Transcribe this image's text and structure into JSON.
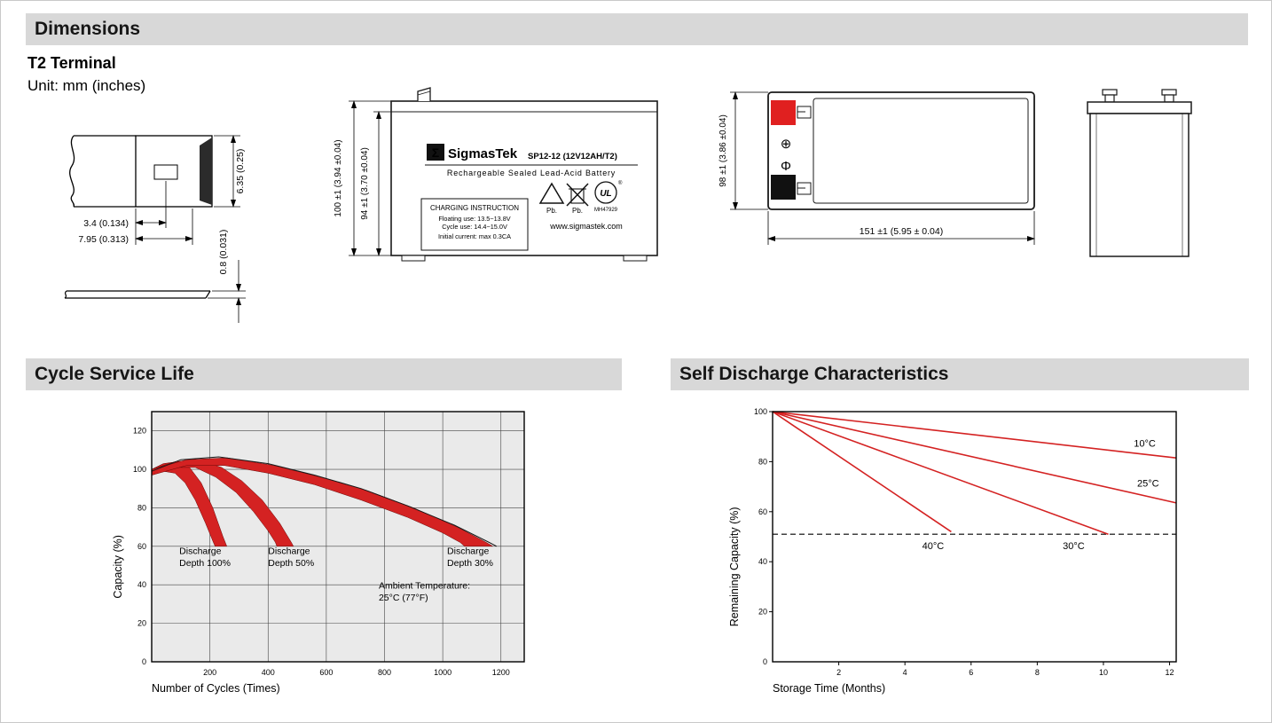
{
  "colors": {
    "banner_bg": "#d8d8d8",
    "chart_red": "#d42222",
    "terminal_positive_red": "#e02020",
    "terminal_negative_black": "#111111"
  },
  "banners": {
    "dimensions": "Dimensions",
    "cycle": "Cycle Service Life",
    "self_discharge": "Self Discharge Characteristics"
  },
  "dimensions_section": {
    "terminal_type": "T2 Terminal",
    "unit": "Unit: mm (inches)",
    "terminal_drawing": {
      "dim_width": "6.35 (0.25)",
      "dim_hole": "3.4 (0.134)",
      "dim_length": "7.95 (0.313)",
      "dim_thickness": "0.8 (0.031)"
    },
    "front_view": {
      "dim_total_height": "100 ±1 (3.94 ±0.04)",
      "dim_body_height": "94 ±1 (3.70 ±0.04)",
      "logo_glyph": "Σ",
      "brand": "SigmasTek",
      "model": "SP12-12 (12V12AH/T2)",
      "battery_type": "Rechargeable Sealed Lead-Acid Battery",
      "charging_title": "CHARGING INSTRUCTION",
      "charging_lines": [
        "Floating use: 13.5~13.8V",
        "Cycle use: 14.4~15.0V",
        "Initial current: max 0.3CA"
      ],
      "website": "www.sigmastek.com",
      "pb_recycle_label": "Pb.",
      "pb_bin_label": "Pb.",
      "ul_text": "UL",
      "ul_reg": "®",
      "ul_code": "MH47929"
    },
    "top_view": {
      "dim_depth": "98 ±1 (3.86 ±0.04)",
      "dim_width": "151 ±1 (5.95 ± 0.04)",
      "plus_symbol": "⊕",
      "minus_symbol": "Φ"
    }
  },
  "chart_data": [
    {
      "name": "cycle_service_life",
      "type": "area",
      "title": "Cycle Service Life",
      "xlabel": "Number of Cycles (Times)",
      "ylabel": "Capacity (%)",
      "xlim": [
        0,
        1280
      ],
      "ylim": [
        0,
        130
      ],
      "xticks": [
        200,
        400,
        600,
        800,
        1000,
        1200
      ],
      "yticks": [
        0,
        20,
        40,
        60,
        80,
        100,
        120
      ],
      "grid": true,
      "legend_position": "none",
      "band_color": "#d42222",
      "bands": [
        {
          "name": "discharge-depth-100",
          "upper": [
            [
              0,
              100
            ],
            [
              40,
              103
            ],
            [
              90,
              104
            ],
            [
              130,
              101
            ],
            [
              170,
              93
            ],
            [
              210,
              80
            ],
            [
              245,
              65
            ],
            [
              258,
              60
            ]
          ],
          "lower": [
            [
              0,
              97
            ],
            [
              40,
              99
            ],
            [
              80,
              98
            ],
            [
              115,
              93
            ],
            [
              150,
              84
            ],
            [
              185,
              72
            ],
            [
              212,
              62
            ],
            [
              218,
              60
            ]
          ]
        },
        {
          "name": "discharge-depth-50",
          "upper": [
            [
              0,
              100
            ],
            [
              80,
              104
            ],
            [
              160,
              105
            ],
            [
              240,
              101
            ],
            [
              310,
              94
            ],
            [
              380,
              84
            ],
            [
              440,
              72
            ],
            [
              480,
              62
            ],
            [
              487,
              60
            ]
          ],
          "lower": [
            [
              0,
              97
            ],
            [
              80,
              101
            ],
            [
              150,
              101
            ],
            [
              220,
              96
            ],
            [
              290,
              88
            ],
            [
              350,
              78
            ],
            [
              400,
              68
            ],
            [
              425,
              62
            ],
            [
              430,
              60
            ]
          ]
        },
        {
          "name": "discharge-depth-30",
          "upper": [
            [
              0,
              100
            ],
            [
              120,
              105
            ],
            [
              260,
              106
            ],
            [
              420,
              102
            ],
            [
              580,
              96
            ],
            [
              740,
              89
            ],
            [
              900,
              80
            ],
            [
              1050,
              70
            ],
            [
              1150,
              62
            ],
            [
              1172,
              60
            ]
          ],
          "lower": [
            [
              0,
              97
            ],
            [
              120,
              102
            ],
            [
              250,
              102
            ],
            [
              400,
              98
            ],
            [
              560,
              92
            ],
            [
              720,
              84
            ],
            [
              880,
              75
            ],
            [
              1000,
              67
            ],
            [
              1060,
              62
            ],
            [
              1075,
              60
            ]
          ]
        }
      ],
      "envelope": [
        [
          0,
          99
        ],
        [
          100,
          105
        ],
        [
          230,
          106.5
        ],
        [
          400,
          103
        ],
        [
          560,
          97
        ],
        [
          720,
          90
        ],
        [
          880,
          81
        ],
        [
          1040,
          71
        ],
        [
          1160,
          62
        ],
        [
          1185,
          60
        ]
      ],
      "annotations": [
        {
          "text": "Discharge\nDepth 100%",
          "x": 95,
          "y": 56
        },
        {
          "text": "Discharge\nDepth 50%",
          "x": 400,
          "y": 56
        },
        {
          "text": "Discharge\nDepth 30%",
          "x": 1015,
          "y": 56
        },
        {
          "text": "Ambient Temperature:\n25°C (77°F)",
          "x": 780,
          "y": 38
        }
      ]
    },
    {
      "name": "self_discharge",
      "type": "line",
      "title": "Self Discharge Characteristics",
      "xlabel": "Storage Time (Months)",
      "ylabel": "Remaining Capacity (%)",
      "xlim": [
        0,
        12.2
      ],
      "ylim": [
        0,
        100
      ],
      "xticks": [
        2,
        4,
        6,
        8,
        10,
        12
      ],
      "yticks": [
        0,
        20,
        40,
        60,
        80,
        100
      ],
      "grid": false,
      "legend_position": "inline-labels",
      "line_color": "#d42222",
      "series": [
        {
          "name": "10°C",
          "points": [
            [
              0,
              100
            ],
            [
              12.2,
              81.5
            ]
          ],
          "label": {
            "x": 11.25,
            "y": 86
          }
        },
        {
          "name": "25°C",
          "points": [
            [
              0,
              100
            ],
            [
              12.2,
              63.5
            ]
          ],
          "label": {
            "x": 11.35,
            "y": 70
          }
        },
        {
          "name": "30°C",
          "points": [
            [
              0,
              100
            ],
            [
              10.15,
              51
            ]
          ],
          "label": {
            "x": 9.1,
            "y": 45
          }
        },
        {
          "name": "40°C",
          "points": [
            [
              0,
              100
            ],
            [
              5.4,
              52
            ]
          ],
          "label": {
            "x": 4.85,
            "y": 45
          }
        }
      ],
      "dashed_line_y": 51
    }
  ]
}
